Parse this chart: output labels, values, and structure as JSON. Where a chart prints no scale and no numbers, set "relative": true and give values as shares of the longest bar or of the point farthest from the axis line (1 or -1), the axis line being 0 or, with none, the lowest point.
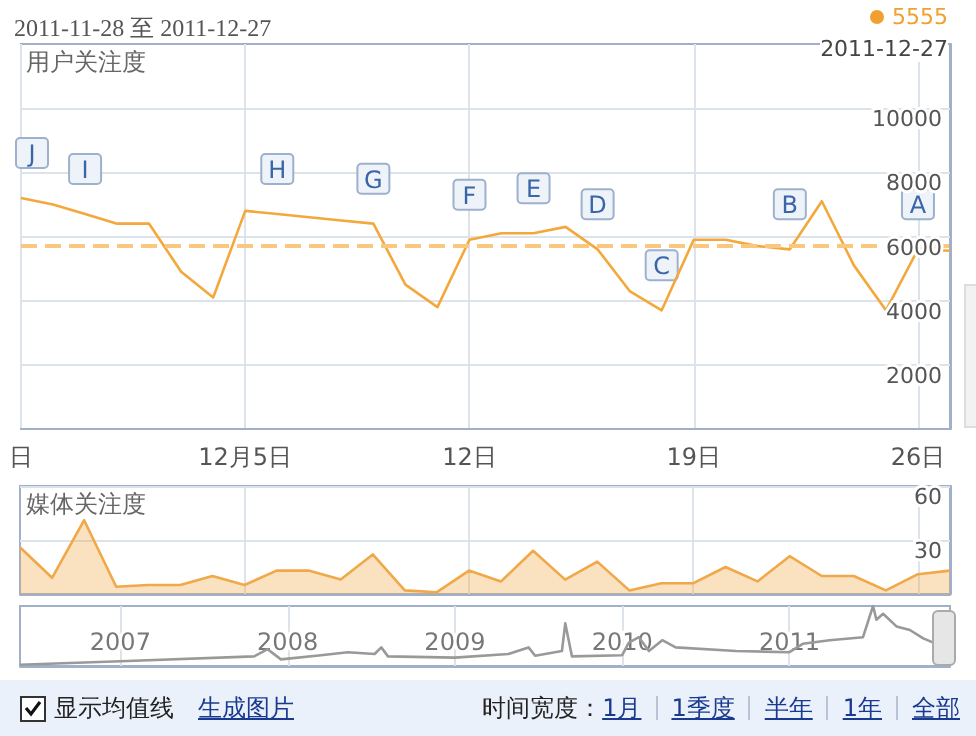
{
  "chart_data": [
    {
      "type": "line",
      "title": "2011-11-28 至 2011-12-27",
      "ylabel": "用户关注度",
      "marker": "none",
      "grid": true,
      "x": [
        "2011-11-28",
        "2011-11-29",
        "2011-11-30",
        "2011-12-01",
        "2011-12-02",
        "2011-12-03",
        "2011-12-04",
        "2011-12-05",
        "2011-12-06",
        "2011-12-07",
        "2011-12-08",
        "2011-12-09",
        "2011-12-10",
        "2011-12-11",
        "2011-12-12",
        "2011-12-13",
        "2011-12-14",
        "2011-12-15",
        "2011-12-16",
        "2011-12-17",
        "2011-12-18",
        "2011-12-19",
        "2011-12-20",
        "2011-12-21",
        "2011-12-22",
        "2011-12-23",
        "2011-12-24",
        "2011-12-25",
        "2011-12-26",
        "2011-12-27"
      ],
      "series": [
        {
          "color": "#f4a83c",
          "values": [
            7200,
            7000,
            6700,
            6400,
            6400,
            4900,
            4100,
            6800,
            6700,
            6600,
            6500,
            6400,
            4500,
            3800,
            5900,
            6100,
            6100,
            6300,
            5600,
            4300,
            3700,
            5900,
            5900,
            5700,
            5600,
            7100,
            5100,
            3700,
            5600,
            5555
          ]
        }
      ],
      "xlim": [
        "2011-11-28",
        "2011-12-27"
      ],
      "xticks": [
        {
          "value": "2011-11-28",
          "label": "日"
        },
        {
          "value": "2011-12-05",
          "label": "12月5日"
        },
        {
          "value": "2011-12-12",
          "label": "12日"
        },
        {
          "value": "2011-12-19",
          "label": "19日"
        },
        {
          "value": "2011-12-26",
          "label": "26日"
        }
      ],
      "ylim": [
        0,
        12000
      ],
      "yticks": [
        2000,
        4000,
        6000,
        8000,
        10000
      ],
      "ref_lines": [
        {
          "axis": "y",
          "value": 5700,
          "label": null,
          "color": "#f9c77e",
          "line_style": "dashed"
        }
      ],
      "annotations": [
        "5555",
        "2011-12-27",
        {
          "text": "J",
          "x": "2011-11-28",
          "y": 7200
        },
        {
          "text": "I",
          "x": "2011-11-30",
          "y": 6700
        },
        {
          "text": "H",
          "x": "2011-12-06",
          "y": 6700
        },
        {
          "text": "G",
          "x": "2011-12-09",
          "y": 6400
        },
        {
          "text": "F",
          "x": "2011-12-12",
          "y": 5900
        },
        {
          "text": "E",
          "x": "2011-12-14",
          "y": 6100
        },
        {
          "text": "D",
          "x": "2011-12-16",
          "y": 5600
        },
        {
          "text": "C",
          "x": "2011-12-18",
          "y": 3700
        },
        {
          "text": "B",
          "x": "2011-12-22",
          "y": 5600
        },
        {
          "text": "A",
          "x": "2011-12-26",
          "y": 5600
        }
      ]
    },
    {
      "type": "area",
      "ylabel": "媒体关注度",
      "marker": "none",
      "grid": true,
      "tick_labels": "y",
      "x": [
        "2011-11-28",
        "2011-11-29",
        "2011-11-30",
        "2011-12-01",
        "2011-12-02",
        "2011-12-03",
        "2011-12-04",
        "2011-12-05",
        "2011-12-06",
        "2011-12-07",
        "2011-12-08",
        "2011-12-09",
        "2011-12-10",
        "2011-12-11",
        "2011-12-12",
        "2011-12-13",
        "2011-12-14",
        "2011-12-15",
        "2011-12-16",
        "2011-12-17",
        "2011-12-18",
        "2011-12-19",
        "2011-12-20",
        "2011-12-21",
        "2011-12-22",
        "2011-12-23",
        "2011-12-24",
        "2011-12-25",
        "2011-12-26",
        "2011-12-27"
      ],
      "series": [
        {
          "color": "#f0a848",
          "values": [
            26,
            9,
            41,
            4,
            5,
            5,
            10,
            5,
            13,
            13,
            8,
            22,
            2,
            1,
            13,
            7,
            24,
            8,
            18,
            2,
            6,
            6,
            15,
            7,
            21,
            10,
            10,
            2,
            11,
            13
          ]
        }
      ],
      "xlim": [
        "2011-11-28",
        "2011-12-27"
      ],
      "xticks": [
        {
          "value": "2011-12-05",
          "label": null
        },
        {
          "value": "2011-12-12",
          "label": null
        },
        {
          "value": "2011-12-19",
          "label": null
        },
        {
          "value": "2011-12-26",
          "label": null
        }
      ],
      "ylim": [
        0,
        60
      ],
      "yticks": [
        30,
        60
      ]
    },
    {
      "type": "line",
      "relative": true,
      "marker": "none",
      "grid": "x",
      "tick_labels": "x",
      "x": [
        2006.4,
        2007.0,
        2007.8,
        2007.88,
        2007.96,
        2008.2,
        2008.36,
        2008.52,
        2008.56,
        2008.6,
        2009.0,
        2009.32,
        2009.44,
        2009.48,
        2009.64,
        2009.66,
        2009.7,
        2010.0,
        2010.04,
        2010.1,
        2010.16,
        2010.24,
        2010.32,
        2010.68,
        2011.0,
        2011.08,
        2011.24,
        2011.44,
        2011.5,
        2011.52,
        2011.56,
        2011.64,
        2011.72,
        2011.8,
        2011.86
      ],
      "series": [
        {
          "color": "#999999",
          "values": [
            0.02,
            0.08,
            0.16,
            0.28,
            0.11,
            0.18,
            0.23,
            0.2,
            0.31,
            0.16,
            0.14,
            0.2,
            0.31,
            0.17,
            0.25,
            0.71,
            0.16,
            0.18,
            0.39,
            0.48,
            0.25,
            0.43,
            0.31,
            0.25,
            0.23,
            0.37,
            0.43,
            0.48,
            1,
            0.77,
            0.87,
            0.66,
            0.6,
            0.46,
            0.39
          ]
        }
      ],
      "xlim": [
        2006.4,
        2011.96
      ],
      "xticks": [
        2007,
        2008,
        2009,
        2010,
        2011
      ]
    },
    {
      "type": "other",
      "annotations": [
        "显示均值线",
        "生成图片",
        "时间宽度：",
        "1月",
        "1季度",
        "半年",
        "1年",
        "全部"
      ]
    }
  ]
}
